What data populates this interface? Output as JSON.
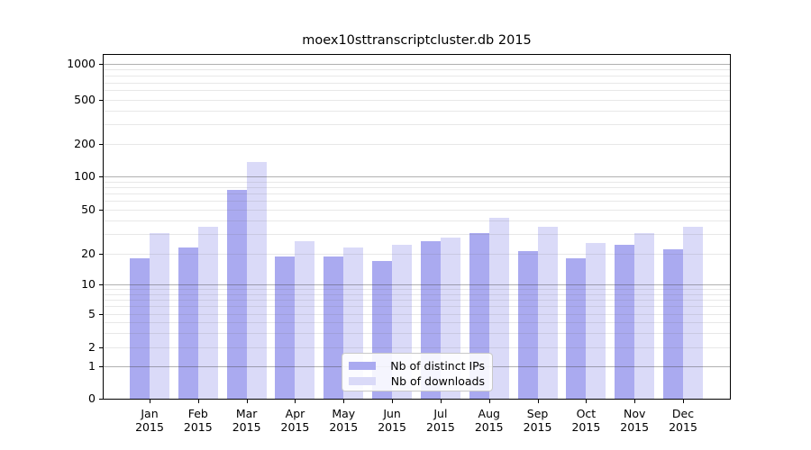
{
  "chart_data": {
    "type": "bar",
    "title": "moex10sttranscriptcluster.db 2015",
    "xlabel": "",
    "ylabel": "",
    "year": "2015",
    "categories": [
      "Jan",
      "Feb",
      "Mar",
      "Apr",
      "May",
      "Jun",
      "Jul",
      "Aug",
      "Sep",
      "Oct",
      "Nov",
      "Dec"
    ],
    "x_tick_labels_second_line": "2015",
    "series": [
      {
        "name": "Nb of distinct IPs",
        "color": "#aaaaf0",
        "values": [
          18,
          23,
          75,
          19,
          19,
          17,
          26,
          31,
          21,
          18,
          24,
          22
        ]
      },
      {
        "name": "Nb of downloads",
        "color": "#dadaf8",
        "values": [
          31,
          35,
          135,
          26,
          23,
          24,
          28,
          42,
          35,
          25,
          31,
          35
        ]
      }
    ],
    "y_ticks": [
      0,
      1,
      2,
      5,
      10,
      20,
      50,
      100,
      200,
      500,
      1000
    ],
    "y_major_gridlines": [
      1,
      10,
      100,
      1000
    ],
    "yscale": "pseudo-log",
    "ylim": [
      0,
      1000
    ],
    "grid": "horizontal",
    "legend_position": "lower-center-inside"
  }
}
